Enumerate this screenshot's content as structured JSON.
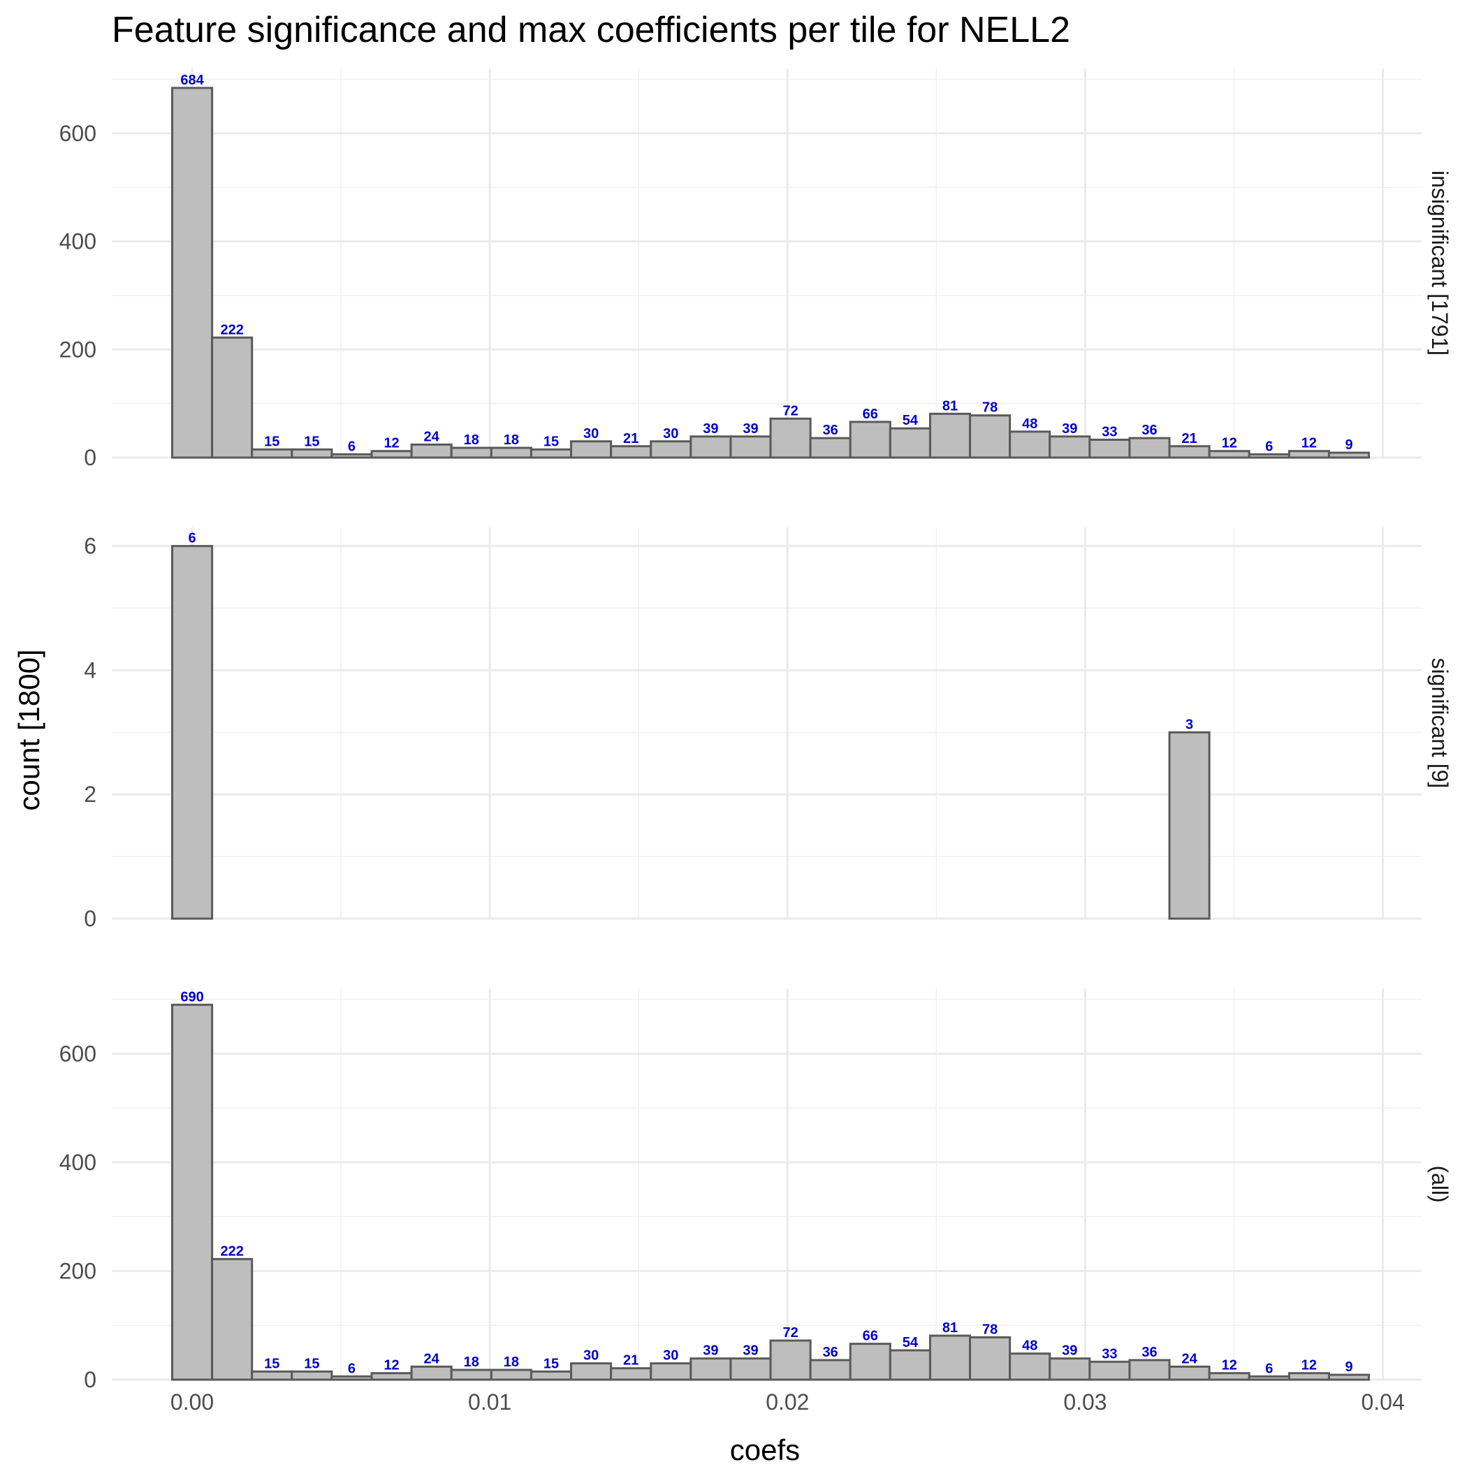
{
  "chart_data": {
    "type": "bar",
    "title": "Feature significance and max coefficients per tile for NELL2",
    "xlabel": "coefs",
    "ylabel": "count [1800]",
    "x_ticks": [
      "0.00",
      "0.01",
      "0.02",
      "0.03",
      "0.04"
    ],
    "xlim": [
      -0.0027,
      0.0413
    ],
    "bin_centers": [
      0.0,
      0.00134,
      0.00268,
      0.00402,
      0.00536,
      0.0067,
      0.00804,
      0.00938,
      0.01072,
      0.01206,
      0.0134,
      0.01474,
      0.01608,
      0.01742,
      0.01876,
      0.0201,
      0.02144,
      0.02278,
      0.02412,
      0.02546,
      0.0268,
      0.02814,
      0.02948,
      0.03082,
      0.03216,
      0.0335,
      0.03484,
      0.03618,
      0.03752,
      0.03886
    ],
    "bin_width": 0.00134,
    "grid": true,
    "label_color": "#0000cc",
    "bar_fill": "#bebebe",
    "bar_stroke": "#5a5a5a",
    "panels": [
      {
        "strip_label": "insignificant [1791]",
        "ylim": [
          0,
          720
        ],
        "y_ticks": [
          0,
          200,
          400,
          600
        ],
        "values": [
          684,
          222,
          15,
          15,
          6,
          12,
          24,
          18,
          18,
          15,
          30,
          21,
          30,
          39,
          39,
          72,
          36,
          66,
          54,
          81,
          78,
          48,
          39,
          33,
          36,
          21,
          12,
          6,
          12,
          9
        ]
      },
      {
        "strip_label": "significant [9]",
        "ylim": [
          0,
          6.3
        ],
        "y_ticks": [
          0,
          2,
          4,
          6
        ],
        "values": [
          6,
          0,
          0,
          0,
          0,
          0,
          0,
          0,
          0,
          0,
          0,
          0,
          0,
          0,
          0,
          0,
          0,
          0,
          0,
          0,
          0,
          0,
          0,
          0,
          0,
          3,
          0,
          0,
          0,
          0
        ]
      },
      {
        "strip_label": "(all)",
        "ylim": [
          0,
          720
        ],
        "y_ticks": [
          0,
          200,
          400,
          600
        ],
        "values": [
          690,
          222,
          15,
          15,
          6,
          12,
          24,
          18,
          18,
          15,
          30,
          21,
          30,
          39,
          39,
          72,
          36,
          66,
          54,
          81,
          78,
          48,
          39,
          33,
          36,
          24,
          12,
          6,
          12,
          9
        ]
      }
    ]
  }
}
